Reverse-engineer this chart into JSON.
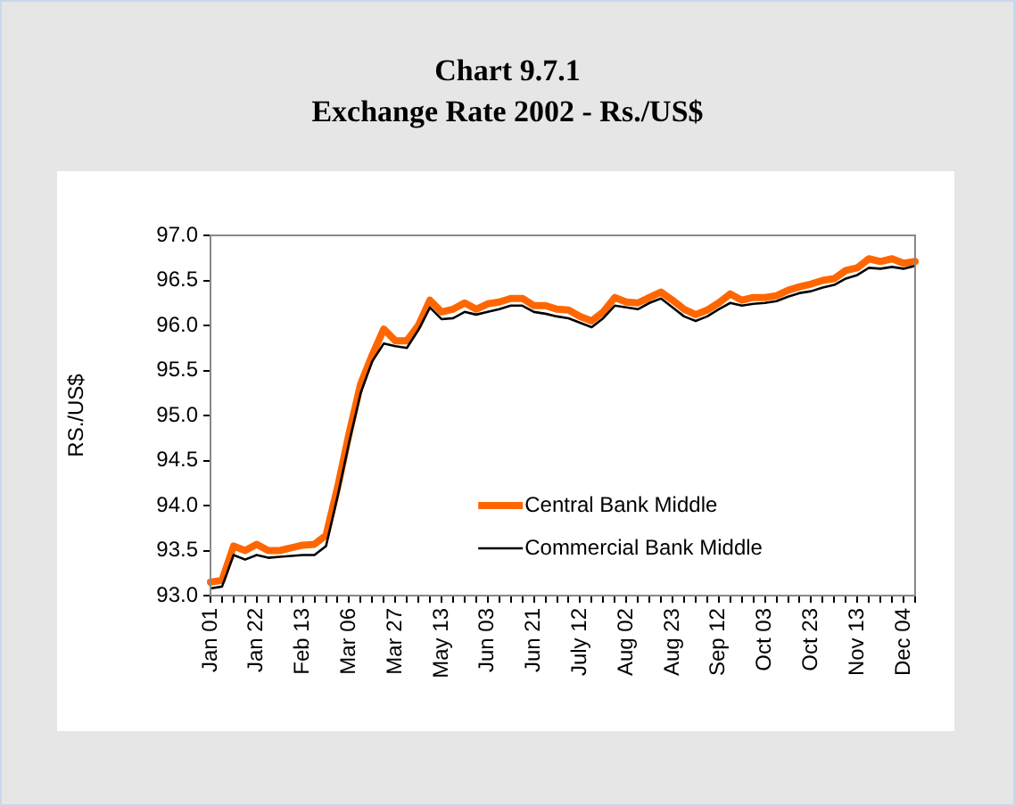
{
  "chart_data": {
    "type": "line",
    "title": "Chart 9.7.1",
    "subtitle": "Exchange Rate 2002 - Rs./US$",
    "ylabel": "RS./US$",
    "categories": [
      "Jan 01",
      null,
      null,
      null,
      "Jan 22",
      null,
      null,
      null,
      "Feb 13",
      null,
      null,
      null,
      "Mar 06",
      null,
      null,
      null,
      "Mar 27",
      null,
      null,
      null,
      "May 13",
      null,
      null,
      null,
      "Jun 03",
      null,
      null,
      null,
      "Jun 21",
      null,
      null,
      null,
      "July 12",
      null,
      null,
      null,
      "Aug 02",
      null,
      null,
      null,
      "Aug 23",
      null,
      null,
      null,
      "Sep 12",
      null,
      null,
      null,
      "Oct 03",
      null,
      null,
      null,
      "Oct 23",
      null,
      null,
      null,
      "Nov 13",
      null,
      null,
      null,
      "Dec 04",
      null
    ],
    "series": [
      {
        "name": "Central Bank Middle",
        "color": "#ff6600",
        "values": [
          93.15,
          93.17,
          93.55,
          93.5,
          93.57,
          93.5,
          93.5,
          93.53,
          93.56,
          93.57,
          93.67,
          94.2,
          94.8,
          95.35,
          95.67,
          95.96,
          95.83,
          95.83,
          96.0,
          96.28,
          96.15,
          96.18,
          96.25,
          96.18,
          96.24,
          96.26,
          96.3,
          96.3,
          96.22,
          96.22,
          96.18,
          96.17,
          96.1,
          96.05,
          96.15,
          96.31,
          96.26,
          96.25,
          96.31,
          96.37,
          96.28,
          96.18,
          96.12,
          96.17,
          96.25,
          96.35,
          96.28,
          96.31,
          96.31,
          96.33,
          96.39,
          96.43,
          96.46,
          96.5,
          96.52,
          96.61,
          96.64,
          96.74,
          96.71,
          96.74,
          96.69,
          96.71
        ]
      },
      {
        "name": "Commercial Bank Middle",
        "color": "#000000",
        "values": [
          93.08,
          93.1,
          93.45,
          93.4,
          93.45,
          93.42,
          93.43,
          93.44,
          93.45,
          93.45,
          93.55,
          94.1,
          94.7,
          95.25,
          95.6,
          95.8,
          95.77,
          95.75,
          95.95,
          96.2,
          96.07,
          96.08,
          96.15,
          96.12,
          96.15,
          96.18,
          96.22,
          96.22,
          96.15,
          96.13,
          96.1,
          96.08,
          96.03,
          95.98,
          96.08,
          96.22,
          96.2,
          96.18,
          96.25,
          96.3,
          96.2,
          96.1,
          96.05,
          96.1,
          96.18,
          96.25,
          96.22,
          96.24,
          96.25,
          96.27,
          96.32,
          96.36,
          96.38,
          96.42,
          96.45,
          96.52,
          96.56,
          96.64,
          96.63,
          96.65,
          96.63,
          96.66
        ]
      }
    ],
    "ylim": [
      93,
      97
    ],
    "yticks": [
      {
        "value": 93,
        "label": "93.0"
      },
      {
        "value": 93.5,
        "label": "93.5"
      },
      {
        "value": 94,
        "label": "94.0"
      },
      {
        "value": 94.5,
        "label": "94.5"
      },
      {
        "value": 95,
        "label": "95.0"
      },
      {
        "value": 95.5,
        "label": "95.5"
      },
      {
        "value": 96,
        "label": "96.0"
      },
      {
        "value": 96.5,
        "label": "96.5"
      },
      {
        "value": 97,
        "label": "97.0"
      }
    ],
    "grid": false,
    "legend": "bottom right",
    "marker": "none",
    "line_style": "solid"
  }
}
